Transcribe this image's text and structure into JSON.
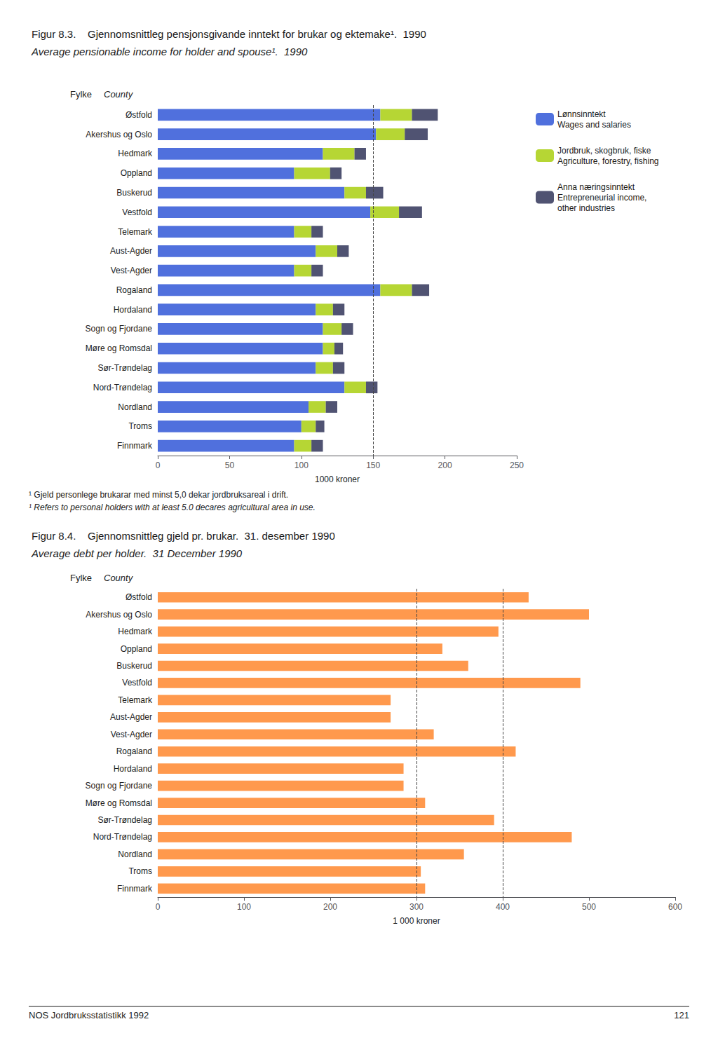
{
  "chart_data": [
    {
      "type": "bar",
      "title": "Figur 8.3.    Gjennomsnittleg pensjonsgivande inntekt for brukar og ektemake¹.  1990",
      "subtitle": "Average pensionable income for holder and spouse¹.  1990",
      "orientation": "horizontal",
      "stacked": true,
      "categories": [
        "Østfold",
        "Akershus og Oslo",
        "Hedmark",
        "Oppland",
        "Buskerud",
        "Vestfold",
        "Telemark",
        "Aust-Agder",
        "Vest-Agder",
        "Rogaland",
        "Hordaland",
        "Sogn og Fjordane",
        "Møre og Romsdal",
        "Sør-Trøndelag",
        "Nord-Trøndelag",
        "Nordland",
        "Troms",
        "Finnmark"
      ],
      "series": [
        {
          "name": "Lønnsinntekt\nWages and salaries",
          "values": [
            155,
            152,
            115,
            95,
            130,
            148,
            95,
            110,
            95,
            155,
            110,
            115,
            115,
            110,
            130,
            105,
            100,
            95
          ]
        },
        {
          "name": "Jordbruk, skogbruk, fiske\nAgriculture, forestry, fishing",
          "values": [
            22,
            20,
            22,
            25,
            15,
            20,
            12,
            15,
            12,
            22,
            12,
            13,
            8,
            12,
            15,
            12,
            10,
            12
          ]
        },
        {
          "name": "Anna næringsinntekt\nEntrepreneurial income,\nother industries",
          "values": [
            18,
            16,
            8,
            8,
            12,
            16,
            8,
            8,
            8,
            12,
            8,
            8,
            6,
            8,
            8,
            8,
            6,
            8
          ]
        }
      ],
      "xlabel": "1000 kroner",
      "xlim": [
        0,
        250
      ],
      "xticks": [
        0,
        50,
        100,
        150,
        200,
        250
      ],
      "reference_lines": [
        150
      ],
      "annotations": [
        "Fylke",
        "County"
      ],
      "legend": "right",
      "grid": false
    },
    {
      "type": "bar",
      "title": "Figur 8.4.    Gjennomsnittleg gjeld pr. brukar.  31. desember 1990",
      "subtitle": "Average debt per holder.  31 December 1990",
      "orientation": "horizontal",
      "categories": [
        "Østfold",
        "Akershus og Oslo",
        "Hedmark",
        "Oppland",
        "Buskerud",
        "Vestfold",
        "Telemark",
        "Aust-Agder",
        "Vest-Agder",
        "Rogaland",
        "Hordaland",
        "Sogn og Fjordane",
        "Møre og Romsdal",
        "Sør-Trøndelag",
        "Nord-Trøndelag",
        "Nordland",
        "Troms",
        "Finnmark"
      ],
      "values": [
        430,
        500,
        395,
        330,
        360,
        490,
        270,
        270,
        320,
        415,
        285,
        285,
        310,
        390,
        480,
        355,
        305,
        310
      ],
      "xlabel": "1 000 kroner",
      "xlim": [
        0,
        600
      ],
      "xticks": [
        0,
        100,
        200,
        300,
        400,
        500,
        600
      ],
      "reference_lines": [
        300,
        400
      ],
      "annotations": [
        "Fylke",
        "County"
      ],
      "grid": false
    }
  ],
  "notes": [
    "¹ Gjeld personlege brukarar med minst 5,0 dekar jordbruksareal i drift.",
    "¹ Refers to personal holders with at least 5.0 decares agricultural area in use."
  ],
  "footer": "NOS Jordbruksstatistikk 1992",
  "page_number": "121"
}
